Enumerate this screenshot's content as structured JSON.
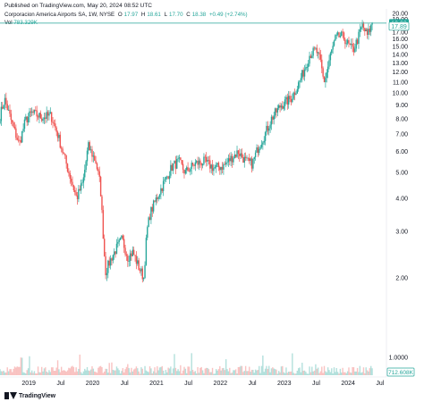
{
  "header": {
    "published": "Published on TradingView.com, May 20, 2024 08:52 UTC",
    "symbol": "Corporacion America Airports SA, 1W, NYSE",
    "o_label": "O",
    "o_value": "17.97",
    "h_label": "H",
    "h_value": "18.61",
    "l_label": "L",
    "l_value": "17.70",
    "c_label": "C",
    "c_value": "18.38",
    "change": "+0.49 (+2.74%)",
    "vol_label": "Vol",
    "vol_value": "783.329K"
  },
  "footer": {
    "brand": "TradingView"
  },
  "colors": {
    "up": "#26a69a",
    "down": "#ef5350",
    "price_line": "#26a69a"
  },
  "chart_data": {
    "type": "candlestick",
    "title": "Corporacion America Airports SA, 1W, NYSE",
    "y_axis": {
      "ticks": [
        "20.00",
        "19.00",
        "18.00",
        "17.00",
        "16.00",
        "15.00",
        "14.00",
        "13.00",
        "12.00",
        "11.00",
        "10.00",
        "9.00",
        "8.00",
        "7.00",
        "6.00",
        "5.00",
        "4.00",
        "3.00",
        "2.00",
        "1.0000"
      ],
      "tick_values": [
        20,
        19,
        18,
        17,
        16,
        15,
        14,
        13,
        12,
        11,
        10,
        9,
        8,
        7,
        6,
        5,
        4,
        3,
        2,
        1
      ],
      "scale": "log",
      "ylim": [
        1.0,
        20.0
      ]
    },
    "x_axis": {
      "labels": [
        "2019",
        "Jul",
        "2020",
        "Jul",
        "2021",
        "Jul",
        "2022",
        "Jul",
        "2023",
        "Jul",
        "2024",
        "Jul"
      ],
      "label_dates": [
        2019.0,
        2019.5,
        2020.0,
        2020.5,
        2021.0,
        2021.5,
        2022.0,
        2022.5,
        2023.0,
        2023.5,
        2024.0,
        2024.5
      ],
      "xlim": [
        2018.55,
        2024.6
      ]
    },
    "price_labels": [
      {
        "name": "last",
        "value": "18.38",
        "numeric": 18.38,
        "style": "filled"
      },
      {
        "name": "level",
        "value": "17.89",
        "numeric": 17.89,
        "style": "outlined"
      }
    ],
    "volume_label": "712.608K",
    "anchors": [
      {
        "date": 2018.55,
        "price": 8.2
      },
      {
        "date": 2018.62,
        "price": 9.5
      },
      {
        "date": 2018.75,
        "price": 7.5
      },
      {
        "date": 2018.85,
        "price": 6.4
      },
      {
        "date": 2018.95,
        "price": 7.9
      },
      {
        "date": 2019.05,
        "price": 8.4
      },
      {
        "date": 2019.2,
        "price": 8.1
      },
      {
        "date": 2019.35,
        "price": 8.2
      },
      {
        "date": 2019.45,
        "price": 7.0
      },
      {
        "date": 2019.55,
        "price": 5.8
      },
      {
        "date": 2019.65,
        "price": 4.8
      },
      {
        "date": 2019.75,
        "price": 4.0
      },
      {
        "date": 2019.85,
        "price": 4.6
      },
      {
        "date": 2019.93,
        "price": 6.3
      },
      {
        "date": 2020.05,
        "price": 5.5
      },
      {
        "date": 2020.12,
        "price": 4.5
      },
      {
        "date": 2020.2,
        "price": 2.1
      },
      {
        "date": 2020.3,
        "price": 2.4
      },
      {
        "date": 2020.38,
        "price": 2.6
      },
      {
        "date": 2020.46,
        "price": 2.8
      },
      {
        "date": 2020.55,
        "price": 2.4
      },
      {
        "date": 2020.63,
        "price": 2.5
      },
      {
        "date": 2020.72,
        "price": 2.2
      },
      {
        "date": 2020.8,
        "price": 2.0
      },
      {
        "date": 2020.85,
        "price": 3.0
      },
      {
        "date": 2020.9,
        "price": 3.5
      },
      {
        "date": 2021.0,
        "price": 4.0
      },
      {
        "date": 2021.12,
        "price": 4.6
      },
      {
        "date": 2021.25,
        "price": 5.3
      },
      {
        "date": 2021.35,
        "price": 5.5
      },
      {
        "date": 2021.45,
        "price": 5.0
      },
      {
        "date": 2021.6,
        "price": 5.4
      },
      {
        "date": 2021.75,
        "price": 5.5
      },
      {
        "date": 2021.9,
        "price": 5.2
      },
      {
        "date": 2022.05,
        "price": 5.3
      },
      {
        "date": 2022.18,
        "price": 5.7
      },
      {
        "date": 2022.28,
        "price": 6.0
      },
      {
        "date": 2022.4,
        "price": 5.5
      },
      {
        "date": 2022.5,
        "price": 5.4
      },
      {
        "date": 2022.6,
        "price": 6.3
      },
      {
        "date": 2022.7,
        "price": 7.0
      },
      {
        "date": 2022.8,
        "price": 8.0
      },
      {
        "date": 2022.95,
        "price": 9.0
      },
      {
        "date": 2023.1,
        "price": 9.5
      },
      {
        "date": 2023.2,
        "price": 10.5
      },
      {
        "date": 2023.3,
        "price": 12.0
      },
      {
        "date": 2023.4,
        "price": 14.0
      },
      {
        "date": 2023.5,
        "price": 14.5
      },
      {
        "date": 2023.57,
        "price": 13.0
      },
      {
        "date": 2023.62,
        "price": 11.0
      },
      {
        "date": 2023.66,
        "price": 11.8
      },
      {
        "date": 2023.72,
        "price": 13.8
      },
      {
        "date": 2023.8,
        "price": 16.0
      },
      {
        "date": 2023.88,
        "price": 16.5
      },
      {
        "date": 2023.95,
        "price": 16.0
      },
      {
        "date": 2024.0,
        "price": 15.2
      },
      {
        "date": 2024.08,
        "price": 14.5
      },
      {
        "date": 2024.15,
        "price": 16.0
      },
      {
        "date": 2024.22,
        "price": 18.0
      },
      {
        "date": 2024.3,
        "price": 16.5
      },
      {
        "date": 2024.38,
        "price": 18.38
      }
    ]
  }
}
